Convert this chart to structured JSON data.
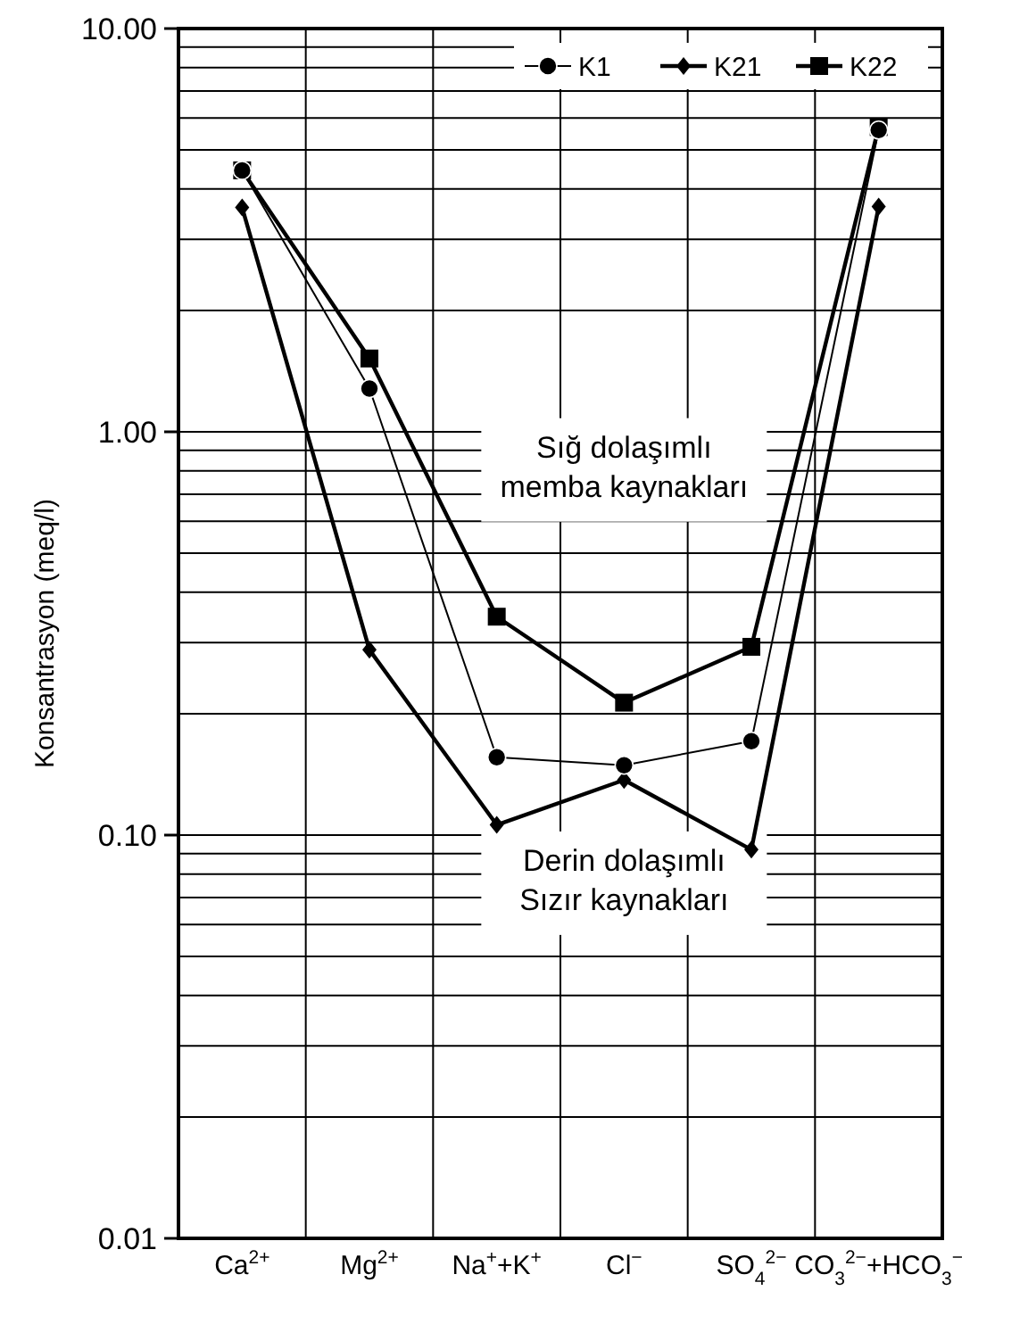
{
  "chart_data": {
    "type": "line",
    "ylabel": "Konsantrasyon (meq/l)",
    "log": "y",
    "grid": true,
    "legend": "top right",
    "categories": [
      "Ca$^{2+}$",
      "Mg$^{2+}$",
      "Na$^{+}$+K$^{+}$",
      "Cl$^{−}$",
      "SO$_{4}$$^{2−}$",
      "CO$_{3}$$^{2−}$+HCO$_{3}$$^{−}$"
    ],
    "ylim": [
      0.01,
      10
    ],
    "yticks": [
      {
        "value": 0.01,
        "label": "0.01"
      },
      {
        "value": 0.02,
        "label": null
      },
      {
        "value": 0.03,
        "label": null
      },
      {
        "value": 0.04,
        "label": null
      },
      {
        "value": 0.05,
        "label": null
      },
      {
        "value": 0.06,
        "label": null
      },
      {
        "value": 0.07,
        "label": null
      },
      {
        "value": 0.08,
        "label": null
      },
      {
        "value": 0.09,
        "label": null
      },
      {
        "value": 0.1,
        "label": "0.10"
      },
      {
        "value": 0.2,
        "label": null
      },
      {
        "value": 0.3,
        "label": null
      },
      {
        "value": 0.4,
        "label": null
      },
      {
        "value": 0.5,
        "label": null
      },
      {
        "value": 0.6,
        "label": null
      },
      {
        "value": 0.7,
        "label": null
      },
      {
        "value": 0.8,
        "label": null
      },
      {
        "value": 0.9,
        "label": null
      },
      {
        "value": 1,
        "label": "1.00"
      },
      {
        "value": 2,
        "label": null
      },
      {
        "value": 3,
        "label": null
      },
      {
        "value": 4,
        "label": null
      },
      {
        "value": 5,
        "label": null
      },
      {
        "value": 6,
        "label": null
      },
      {
        "value": 7,
        "label": null
      },
      {
        "value": 8,
        "label": null
      },
      {
        "value": 9,
        "label": null
      },
      {
        "value": 10,
        "label": "10.00"
      }
    ],
    "series": [
      {
        "name": "K1",
        "color": "#000000",
        "marker": "circle",
        "values": [
          4.45,
          1.28,
          0.156,
          0.149,
          0.171,
          5.6
        ]
      },
      {
        "name": "K21",
        "color": "#000000",
        "marker": "diamond",
        "values": [
          3.6,
          0.288,
          0.106,
          0.137,
          0.092,
          3.62
        ]
      },
      {
        "name": "K22",
        "color": "#000000",
        "marker": "square",
        "values": [
          4.45,
          1.52,
          0.348,
          0.213,
          0.293,
          5.7
        ]
      }
    ],
    "annotations": [
      "Sığ dolaşımlı\nmemba kaynakları",
      "Derin dolaşımlı\nSızır kaynakları"
    ]
  }
}
